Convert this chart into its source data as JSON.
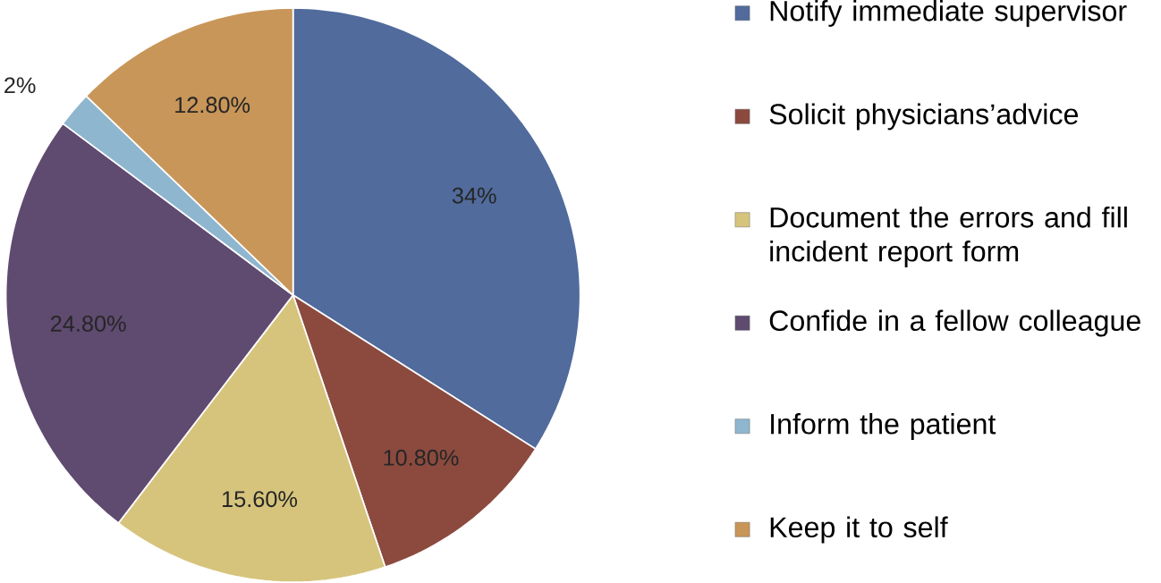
{
  "chart_data": {
    "type": "pie",
    "categories": [
      "Notify immediate supervisor",
      "Solicit physicians’advice",
      "Document the errors and fill incident report form",
      "Confide in a fellow colleague",
      "Inform the patient",
      "Keep it to self"
    ],
    "values": [
      34,
      10.8,
      15.6,
      24.8,
      2,
      12.8
    ],
    "value_labels": [
      "34%",
      "10.80%",
      "15.60%",
      "24.80%",
      "2%",
      "12.80%"
    ],
    "colors": [
      "#506b9c",
      "#8c4a3f",
      "#d6c47c",
      "#5f4a70",
      "#8fb6cf",
      "#c99659"
    ],
    "legend": "right"
  }
}
